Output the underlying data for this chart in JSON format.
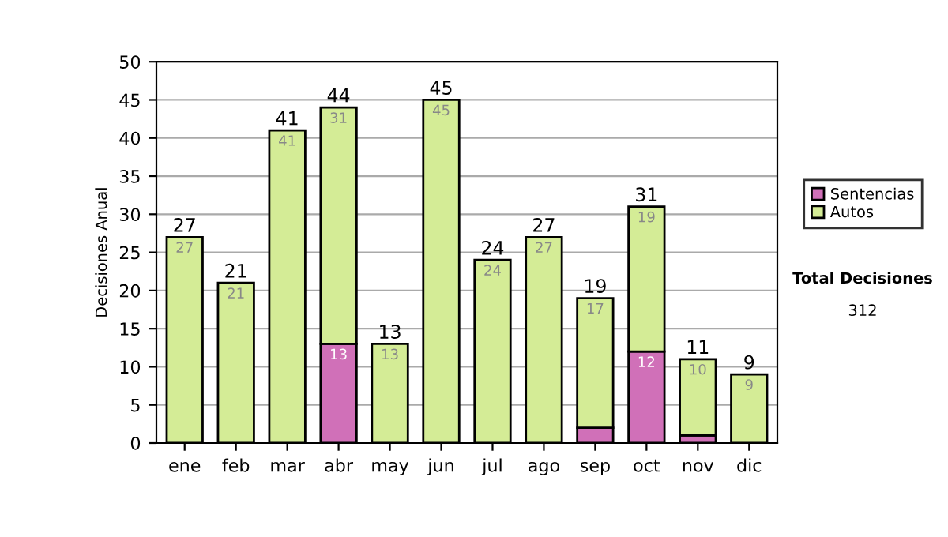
{
  "chart_data": {
    "type": "bar",
    "stacked": true,
    "ylabel": "Decisiones Anual",
    "categories": [
      "ene",
      "feb",
      "mar",
      "abr",
      "may",
      "jun",
      "jul",
      "ago",
      "sep",
      "oct",
      "nov",
      "dic"
    ],
    "series": [
      {
        "name": "Sentencias",
        "color": "#d070b8",
        "values": [
          null,
          null,
          null,
          13,
          null,
          null,
          null,
          null,
          2,
          12,
          1,
          null
        ],
        "value_labels": [
          null,
          null,
          null,
          "13",
          null,
          null,
          null,
          null,
          null,
          "12",
          null,
          null
        ]
      },
      {
        "name": "Autos",
        "color": "#d4ec96",
        "values": [
          27,
          21,
          41,
          31,
          13,
          45,
          24,
          27,
          17,
          19,
          10,
          9
        ],
        "value_labels": [
          "27",
          "21",
          "41",
          "31",
          "13",
          "45",
          "24",
          "27",
          "17",
          "19",
          "10",
          "9"
        ]
      }
    ],
    "totals": [
      "27",
      "21",
      "41",
      "44",
      "13",
      "45",
      "24",
      "27",
      "19",
      "31",
      "11",
      "9"
    ],
    "ylim": [
      0,
      50
    ],
    "yticks": [
      0,
      5,
      10,
      15,
      20,
      25,
      30,
      35,
      40,
      45,
      50
    ],
    "grid": "y",
    "legend": "right",
    "annotations": [
      "Total Decisiones",
      "312"
    ]
  }
}
